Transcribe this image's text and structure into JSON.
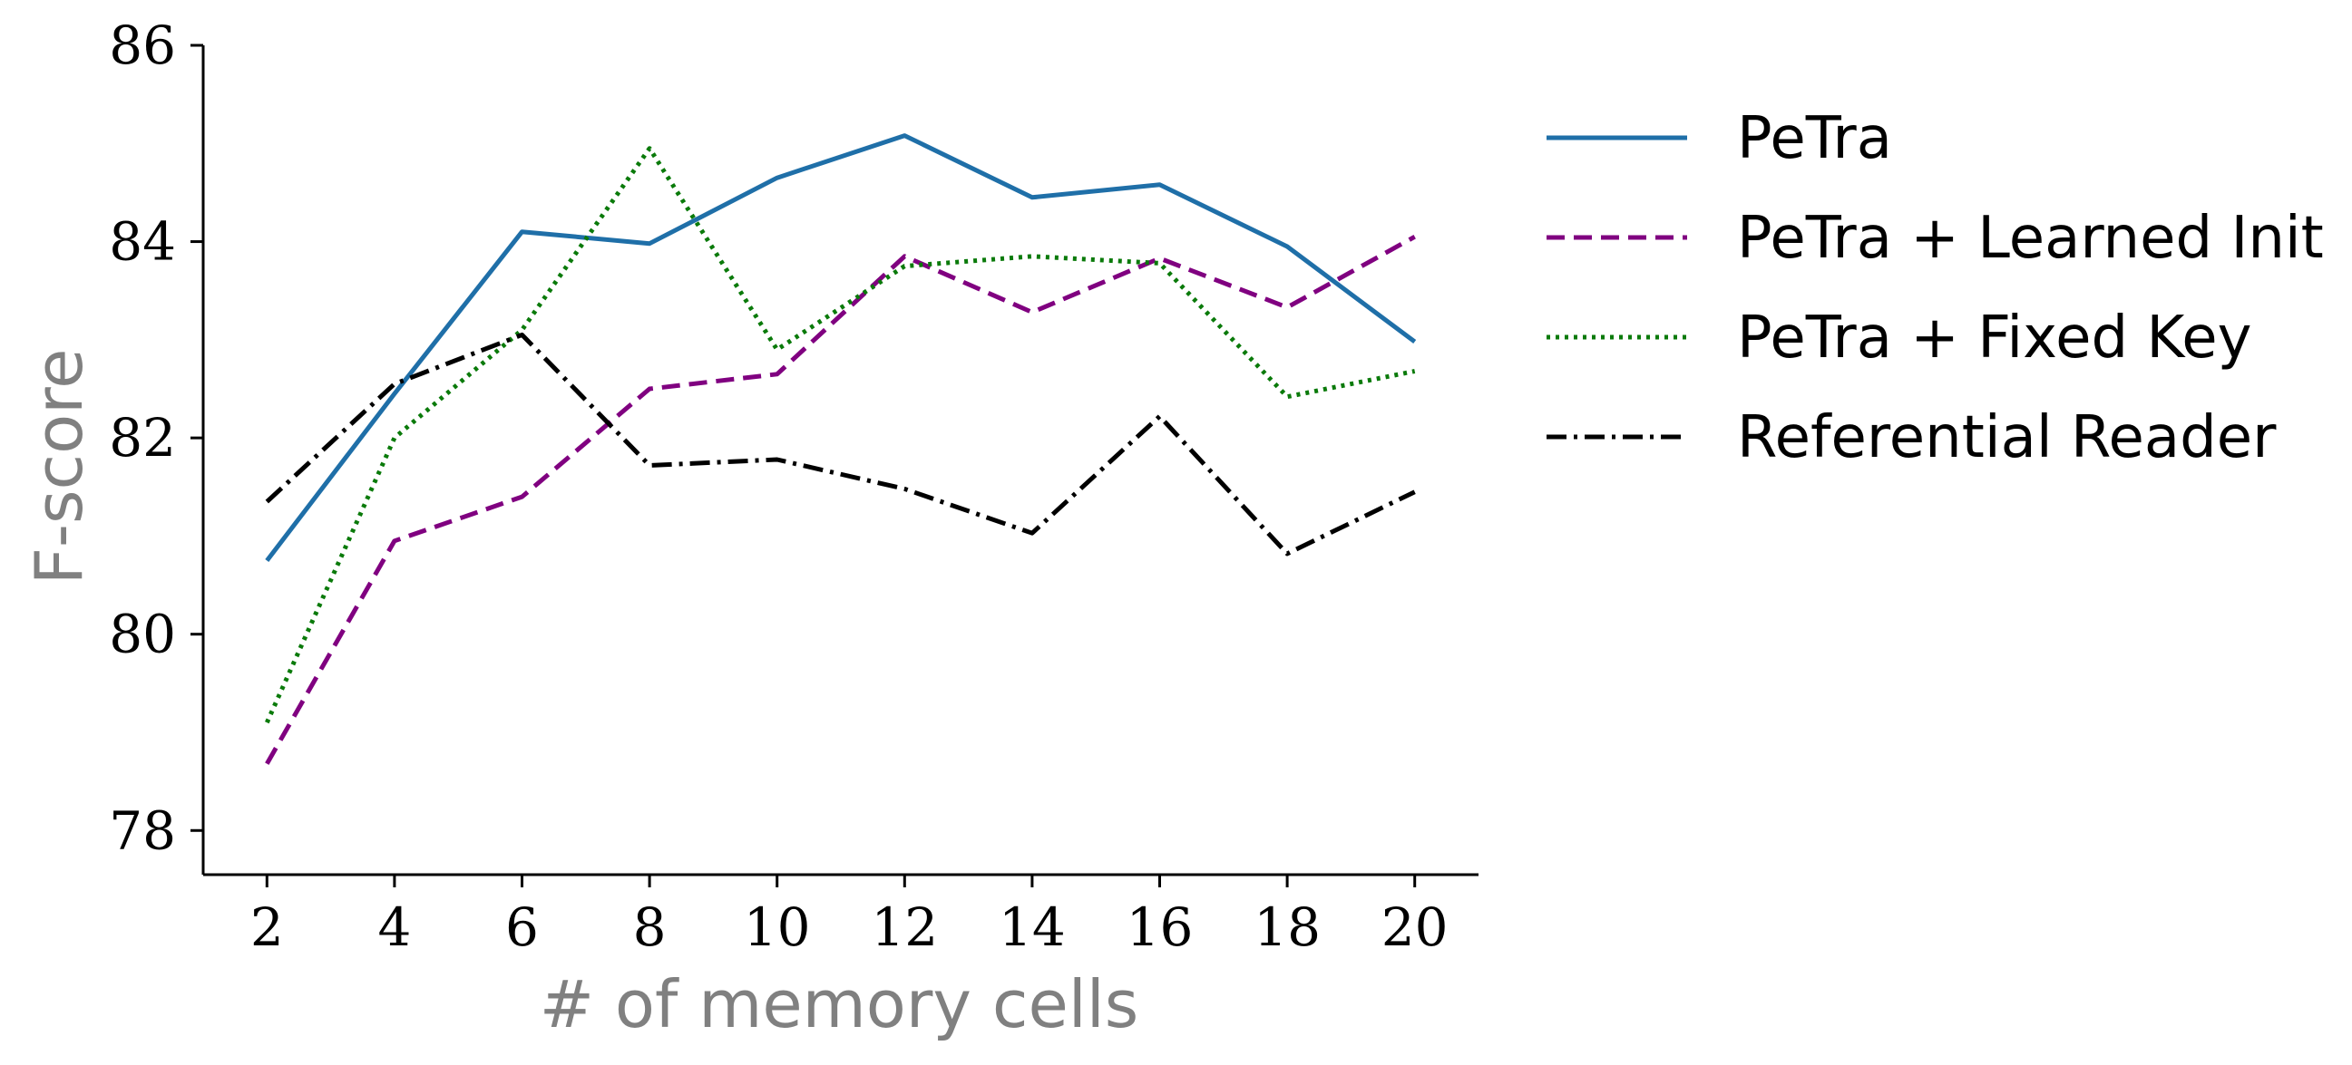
{
  "chart_data": {
    "type": "line",
    "title": "",
    "xlabel": "# of memory cells",
    "ylabel": "F-score",
    "x": [
      2,
      4,
      6,
      8,
      10,
      12,
      14,
      16,
      18,
      20
    ],
    "xticks": [
      "2",
      "4",
      "6",
      "8",
      "10",
      "12",
      "14",
      "16",
      "18",
      "20"
    ],
    "yticks": [
      "78",
      "80",
      "82",
      "84",
      "86"
    ],
    "xlim": [
      1,
      21
    ],
    "ylim": [
      77.55,
      86.0
    ],
    "grid": false,
    "legend_position": "right",
    "series": [
      {
        "name": "PeTra",
        "color": "#1f6fa8",
        "style": "solid",
        "values": [
          80.75,
          82.45,
          84.1,
          83.98,
          84.65,
          85.08,
          84.45,
          84.58,
          83.95,
          82.98
        ]
      },
      {
        "name": "PeTra + Learned Init",
        "color": "#800080",
        "style": "dashed",
        "values": [
          78.68,
          80.95,
          81.4,
          82.5,
          82.65,
          83.85,
          83.28,
          83.83,
          83.33,
          84.05
        ]
      },
      {
        "name": "PeTra + Fixed Key",
        "color": "#0a7a0a",
        "style": "dotted",
        "values": [
          79.1,
          82.0,
          83.1,
          84.95,
          82.9,
          83.75,
          83.85,
          83.78,
          82.42,
          82.68
        ]
      },
      {
        "name": "Referential Reader",
        "color": "#000000",
        "style": "dashdot",
        "values": [
          81.35,
          82.55,
          83.05,
          81.72,
          81.78,
          81.48,
          81.03,
          82.22,
          80.82,
          81.45
        ]
      }
    ]
  }
}
